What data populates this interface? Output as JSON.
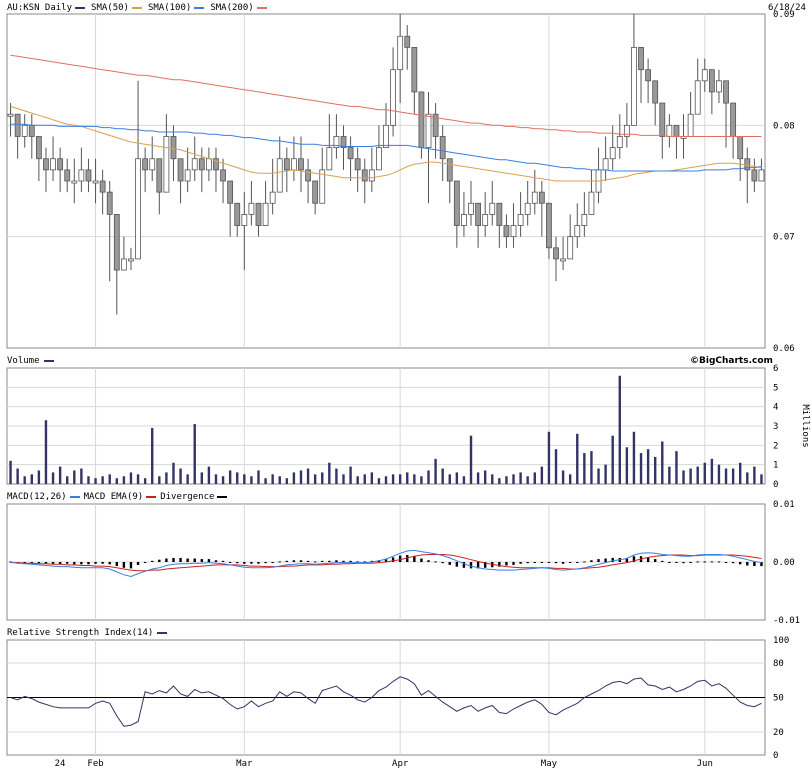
{
  "header": {
    "symbol_label": "AU:KSN Daily",
    "date": "6/18/24",
    "legend": [
      {
        "label": "SMA(50)",
        "color": "#d9a050"
      },
      {
        "label": "SMA(100)",
        "color": "#3a7fe0"
      },
      {
        "label": "SMA(200)",
        "color": "#e07060"
      }
    ],
    "symbol_color": "#333366"
  },
  "branding": "©BigCharts.com",
  "chart_data": [
    {
      "type": "candlestick",
      "title": "AU:KSN Daily",
      "ylim": [
        0.06,
        0.09
      ],
      "y_ticks": [
        "0.09",
        "0.08",
        "0.07",
        "0.06"
      ],
      "x_ticks": [
        "24",
        "Feb",
        "Mar",
        "Apr",
        "May",
        "Jun"
      ],
      "grid": true,
      "candle_color": "#999999",
      "close": [
        0.081,
        0.079,
        0.08,
        0.079,
        0.077,
        0.076,
        0.077,
        0.076,
        0.075,
        0.075,
        0.076,
        0.075,
        0.075,
        0.074,
        0.072,
        0.067,
        0.068,
        0.068,
        0.077,
        0.076,
        0.077,
        0.074,
        0.079,
        0.077,
        0.075,
        0.076,
        0.077,
        0.076,
        0.077,
        0.076,
        0.075,
        0.073,
        0.071,
        0.072,
        0.073,
        0.071,
        0.073,
        0.074,
        0.077,
        0.076,
        0.077,
        0.076,
        0.075,
        0.073,
        0.076,
        0.078,
        0.079,
        0.078,
        0.077,
        0.076,
        0.075,
        0.076,
        0.078,
        0.08,
        0.085,
        0.088,
        0.087,
        0.083,
        0.078,
        0.081,
        0.079,
        0.077,
        0.075,
        0.071,
        0.072,
        0.073,
        0.071,
        0.072,
        0.073,
        0.071,
        0.07,
        0.071,
        0.072,
        0.073,
        0.074,
        0.073,
        0.069,
        0.068,
        0.068,
        0.07,
        0.071,
        0.072,
        0.074,
        0.076,
        0.077,
        0.078,
        0.079,
        0.08,
        0.087,
        0.085,
        0.084,
        0.082,
        0.079,
        0.08,
        0.079,
        0.079,
        0.081,
        0.084,
        0.085,
        0.083,
        0.084,
        0.082,
        0.079,
        0.077,
        0.076,
        0.075,
        0.076
      ],
      "high": [
        0.082,
        0.08,
        0.081,
        0.081,
        0.078,
        0.078,
        0.079,
        0.078,
        0.077,
        0.077,
        0.078,
        0.077,
        0.077,
        0.076,
        0.075,
        0.072,
        0.07,
        0.069,
        0.084,
        0.078,
        0.079,
        0.077,
        0.081,
        0.08,
        0.077,
        0.078,
        0.079,
        0.078,
        0.078,
        0.078,
        0.077,
        0.075,
        0.073,
        0.074,
        0.075,
        0.073,
        0.075,
        0.077,
        0.079,
        0.078,
        0.079,
        0.079,
        0.077,
        0.075,
        0.078,
        0.081,
        0.081,
        0.08,
        0.079,
        0.078,
        0.077,
        0.078,
        0.08,
        0.082,
        0.087,
        0.09,
        0.089,
        0.086,
        0.08,
        0.083,
        0.082,
        0.08,
        0.077,
        0.073,
        0.074,
        0.075,
        0.073,
        0.074,
        0.075,
        0.073,
        0.072,
        0.073,
        0.074,
        0.075,
        0.076,
        0.075,
        0.071,
        0.07,
        0.07,
        0.072,
        0.073,
        0.074,
        0.076,
        0.078,
        0.079,
        0.08,
        0.081,
        0.082,
        0.09,
        0.086,
        0.086,
        0.084,
        0.081,
        0.081,
        0.08,
        0.081,
        0.083,
        0.086,
        0.086,
        0.085,
        0.085,
        0.084,
        0.081,
        0.079,
        0.078,
        0.077,
        0.077
      ],
      "low": [
        0.079,
        0.077,
        0.078,
        0.077,
        0.075,
        0.074,
        0.075,
        0.074,
        0.074,
        0.073,
        0.074,
        0.074,
        0.073,
        0.072,
        0.066,
        0.063,
        0.067,
        0.067,
        0.068,
        0.074,
        0.075,
        0.072,
        0.076,
        0.075,
        0.073,
        0.074,
        0.075,
        0.074,
        0.075,
        0.074,
        0.073,
        0.07,
        0.07,
        0.067,
        0.071,
        0.07,
        0.071,
        0.072,
        0.075,
        0.074,
        0.075,
        0.074,
        0.073,
        0.072,
        0.074,
        0.076,
        0.077,
        0.076,
        0.075,
        0.074,
        0.073,
        0.074,
        0.076,
        0.078,
        0.079,
        0.082,
        0.085,
        0.081,
        0.077,
        0.073,
        0.077,
        0.075,
        0.073,
        0.069,
        0.07,
        0.071,
        0.069,
        0.07,
        0.071,
        0.069,
        0.069,
        0.069,
        0.07,
        0.071,
        0.072,
        0.07,
        0.068,
        0.066,
        0.067,
        0.068,
        0.069,
        0.07,
        0.072,
        0.073,
        0.075,
        0.076,
        0.077,
        0.078,
        0.08,
        0.082,
        0.082,
        0.08,
        0.077,
        0.078,
        0.077,
        0.077,
        0.079,
        0.081,
        0.083,
        0.081,
        0.082,
        0.078,
        0.077,
        0.075,
        0.073,
        0.074,
        0.075
      ],
      "sma50": [
        0.0817,
        0.0815,
        0.0813,
        0.0811,
        0.0809,
        0.0807,
        0.0805,
        0.0803,
        0.0801,
        0.08,
        0.0799,
        0.0797,
        0.0795,
        0.0793,
        0.0791,
        0.0789,
        0.0787,
        0.0785,
        0.0784,
        0.0783,
        0.0782,
        0.0781,
        0.078,
        0.0779,
        0.0778,
        0.0776,
        0.0774,
        0.0772,
        0.077,
        0.0768,
        0.0766,
        0.0764,
        0.0762,
        0.076,
        0.0758,
        0.0757,
        0.0757,
        0.0757,
        0.0758,
        0.0759,
        0.076,
        0.0759,
        0.0758,
        0.0757,
        0.0756,
        0.0755,
        0.0754,
        0.0753,
        0.0753,
        0.0753,
        0.0753,
        0.0753,
        0.0754,
        0.0755,
        0.0757,
        0.076,
        0.0763,
        0.0765,
        0.0766,
        0.0767,
        0.0767,
        0.0766,
        0.0765,
        0.0764,
        0.0763,
        0.0762,
        0.0761,
        0.076,
        0.0759,
        0.0758,
        0.0757,
        0.0756,
        0.0755,
        0.0754,
        0.0753,
        0.0752,
        0.0751,
        0.075,
        0.075,
        0.075,
        0.075,
        0.075,
        0.075,
        0.075,
        0.0751,
        0.0752,
        0.0753,
        0.0754,
        0.0756,
        0.0757,
        0.0758,
        0.0759,
        0.0759,
        0.0759,
        0.076,
        0.0761,
        0.0762,
        0.0763,
        0.0764,
        0.0765,
        0.0766,
        0.0766,
        0.0766,
        0.0765,
        0.0764,
        0.0763,
        0.0762
      ],
      "sma100": [
        0.0801,
        0.0801,
        0.0801,
        0.08,
        0.08,
        0.08,
        0.08,
        0.0799,
        0.0799,
        0.0799,
        0.0799,
        0.0799,
        0.0799,
        0.0798,
        0.0798,
        0.0797,
        0.0797,
        0.0796,
        0.0796,
        0.0795,
        0.0795,
        0.0794,
        0.0794,
        0.0794,
        0.0794,
        0.0794,
        0.0793,
        0.0793,
        0.0792,
        0.0792,
        0.0791,
        0.0791,
        0.079,
        0.0789,
        0.0789,
        0.0788,
        0.0787,
        0.0786,
        0.0786,
        0.0785,
        0.0784,
        0.0783,
        0.0783,
        0.0783,
        0.0782,
        0.0782,
        0.0782,
        0.0781,
        0.0781,
        0.0781,
        0.0781,
        0.0781,
        0.0782,
        0.0782,
        0.0782,
        0.0782,
        0.0782,
        0.0781,
        0.078,
        0.0779,
        0.0778,
        0.0777,
        0.0776,
        0.0775,
        0.0774,
        0.0773,
        0.0772,
        0.0771,
        0.077,
        0.0769,
        0.0769,
        0.0768,
        0.0767,
        0.0766,
        0.0766,
        0.0765,
        0.0764,
        0.0763,
        0.0762,
        0.0762,
        0.0761,
        0.0761,
        0.076,
        0.076,
        0.076,
        0.0759,
        0.0759,
        0.0759,
        0.0759,
        0.0759,
        0.0759,
        0.0759,
        0.0759,
        0.0759,
        0.0759,
        0.0759,
        0.0759,
        0.0759,
        0.076,
        0.076,
        0.076,
        0.076,
        0.0761,
        0.0761,
        0.0762,
        0.0762,
        0.0763
      ],
      "sma200": [
        0.0863,
        0.0862,
        0.0861,
        0.086,
        0.0859,
        0.0858,
        0.0857,
        0.0856,
        0.0855,
        0.0854,
        0.0853,
        0.0852,
        0.0851,
        0.085,
        0.0849,
        0.0848,
        0.0847,
        0.0846,
        0.0845,
        0.0845,
        0.0844,
        0.0843,
        0.0842,
        0.0841,
        0.0841,
        0.084,
        0.0839,
        0.0838,
        0.0837,
        0.0836,
        0.0835,
        0.0834,
        0.0833,
        0.0832,
        0.0831,
        0.083,
        0.0829,
        0.0828,
        0.0827,
        0.0826,
        0.0825,
        0.0824,
        0.0823,
        0.0822,
        0.0821,
        0.082,
        0.0819,
        0.0818,
        0.0817,
        0.0817,
        0.0816,
        0.0815,
        0.0814,
        0.0814,
        0.0813,
        0.0812,
        0.0811,
        0.081,
        0.0809,
        0.0808,
        0.0807,
        0.0806,
        0.0805,
        0.0804,
        0.0803,
        0.0802,
        0.0802,
        0.0801,
        0.08,
        0.08,
        0.0799,
        0.0799,
        0.0798,
        0.0798,
        0.0797,
        0.0797,
        0.0796,
        0.0796,
        0.0795,
        0.0795,
        0.0794,
        0.0794,
        0.0794,
        0.0793,
        0.0793,
        0.0793,
        0.0792,
        0.0792,
        0.0792,
        0.0791,
        0.0791,
        0.0791,
        0.0791,
        0.079,
        0.079,
        0.079,
        0.079,
        0.079,
        0.079,
        0.079,
        0.079,
        0.079,
        0.079,
        0.079,
        0.079,
        0.079,
        0.079
      ]
    },
    {
      "type": "bar",
      "title": "Volume",
      "ylabel": "Millions",
      "ylim": [
        0,
        6
      ],
      "y_ticks": [
        "6",
        "5",
        "4",
        "3",
        "2",
        "1",
        "0"
      ],
      "color": "#333366",
      "values": [
        1.2,
        0.8,
        0.4,
        0.5,
        0.7,
        3.3,
        0.6,
        0.9,
        0.4,
        0.7,
        0.8,
        0.4,
        0.3,
        0.4,
        0.5,
        0.3,
        0.4,
        0.6,
        0.5,
        0.3,
        2.9,
        0.4,
        0.6,
        1.1,
        0.8,
        0.5,
        3.1,
        0.6,
        0.9,
        0.5,
        0.4,
        0.7,
        0.6,
        0.5,
        0.4,
        0.7,
        0.3,
        0.5,
        0.4,
        0.3,
        0.6,
        0.7,
        0.8,
        0.5,
        0.6,
        1.1,
        0.8,
        0.5,
        0.9,
        0.4,
        0.5,
        0.6,
        0.3,
        0.4,
        0.5,
        0.5,
        0.6,
        0.5,
        0.4,
        0.7,
        1.3,
        0.8,
        0.5,
        0.6,
        0.4,
        2.5,
        0.6,
        0.7,
        0.5,
        0.3,
        0.4,
        0.5,
        0.6,
        0.4,
        0.6,
        0.9,
        2.7,
        1.8,
        0.7,
        0.5,
        2.6,
        1.6,
        1.7,
        0.8,
        1.0,
        2.5,
        5.6,
        1.9,
        2.7,
        1.6,
        1.8,
        1.4,
        2.2,
        0.9,
        1.7,
        0.7,
        0.8,
        0.9,
        1.1,
        1.3,
        1.0,
        0.8,
        0.8,
        1.1,
        0.6,
        0.9,
        0.5
      ]
    },
    {
      "type": "line",
      "title": "MACD(12,26)",
      "legend": [
        "MACD(12,26)",
        "MACD EMA(9)",
        "Divergence"
      ],
      "colors": {
        "macd": "#3a7fe0",
        "ema": "#cc2222",
        "divergence": "#000000"
      },
      "ylim": [
        -0.01,
        0.01
      ],
      "y_ticks": [
        "0.01",
        "0.00",
        "-0.01"
      ],
      "macd": [
        0.0,
        -0.0002,
        -0.0003,
        -0.0004,
        -0.0005,
        -0.0006,
        -0.0007,
        -0.0008,
        -0.0008,
        -0.0009,
        -0.001,
        -0.001,
        -0.001,
        -0.001,
        -0.0012,
        -0.0017,
        -0.0022,
        -0.0025,
        -0.002,
        -0.0016,
        -0.0012,
        -0.001,
        -0.0006,
        -0.0004,
        -0.0003,
        -0.0003,
        -0.0002,
        -0.0002,
        -0.0001,
        -0.0002,
        -0.0003,
        -0.0005,
        -0.0007,
        -0.0009,
        -0.001,
        -0.001,
        -0.001,
        -0.0009,
        -0.0007,
        -0.0005,
        -0.0004,
        -0.0003,
        -0.0003,
        -0.0004,
        -0.0003,
        -0.0002,
        -0.0001,
        -0.0001,
        -0.0001,
        -0.0001,
        -0.0001,
        0.0,
        0.0002,
        0.0005,
        0.001,
        0.0015,
        0.0019,
        0.002,
        0.0018,
        0.0016,
        0.0014,
        0.0011,
        0.0007,
        0.0002,
        -0.0003,
        -0.0007,
        -0.001,
        -0.0012,
        -0.0013,
        -0.0014,
        -0.0014,
        -0.0014,
        -0.0013,
        -0.0012,
        -0.0011,
        -0.001,
        -0.0011,
        -0.0013,
        -0.0014,
        -0.0013,
        -0.0012,
        -0.001,
        -0.0007,
        -0.0004,
        -0.0001,
        0.0002,
        0.0004,
        0.0006,
        0.0012,
        0.0015,
        0.0016,
        0.0015,
        0.0013,
        0.0012,
        0.0011,
        0.001,
        0.001,
        0.0012,
        0.0013,
        0.0013,
        0.0013,
        0.0012,
        0.001,
        0.0007,
        0.0004,
        0.0001,
        -0.0001
      ],
      "ema": [
        -0.0001,
        -0.0001,
        -0.0002,
        -0.0002,
        -0.0003,
        -0.0003,
        -0.0004,
        -0.0004,
        -0.0005,
        -0.0005,
        -0.0006,
        -0.0006,
        -0.0007,
        -0.0007,
        -0.0008,
        -0.001,
        -0.0012,
        -0.0014,
        -0.0015,
        -0.0015,
        -0.0014,
        -0.0014,
        -0.0012,
        -0.0011,
        -0.001,
        -0.0009,
        -0.0008,
        -0.0007,
        -0.0006,
        -0.0005,
        -0.0005,
        -0.0005,
        -0.0005,
        -0.0006,
        -0.0007,
        -0.0007,
        -0.0008,
        -0.0008,
        -0.0008,
        -0.0007,
        -0.0007,
        -0.0006,
        -0.0005,
        -0.0005,
        -0.0005,
        -0.0004,
        -0.0004,
        -0.0003,
        -0.0003,
        -0.0002,
        -0.0002,
        -0.0002,
        -0.0001,
        0.0,
        0.0002,
        0.0004,
        0.0007,
        0.001,
        0.0012,
        0.0013,
        0.0013,
        0.0013,
        0.0012,
        0.001,
        0.0007,
        0.0004,
        0.0001,
        -0.0002,
        -0.0004,
        -0.0006,
        -0.0008,
        -0.0009,
        -0.001,
        -0.001,
        -0.001,
        -0.001,
        -0.001,
        -0.0011,
        -0.0011,
        -0.0012,
        -0.0012,
        -0.0011,
        -0.001,
        -0.0009,
        -0.0007,
        -0.0005,
        -0.0003,
        -0.0001,
        0.0002,
        0.0005,
        0.0008,
        0.001,
        0.0011,
        0.0012,
        0.0012,
        0.0012,
        0.0011,
        0.0011,
        0.0012,
        0.0012,
        0.0012,
        0.0012,
        0.0012,
        0.0011,
        0.001,
        0.0008,
        0.0006
      ]
    },
    {
      "type": "line",
      "title": "Relative Strength Index(14)",
      "color": "#333366",
      "ylim": [
        0,
        100
      ],
      "y_ticks": [
        "100",
        "80",
        "50",
        "20",
        "0"
      ],
      "reference_line": 50,
      "values": [
        50,
        48,
        51,
        49,
        46,
        44,
        42,
        41,
        41,
        41,
        41,
        41,
        45,
        47,
        45,
        34,
        25,
        26,
        29,
        55,
        53,
        56,
        54,
        60,
        53,
        51,
        57,
        54,
        55,
        52,
        49,
        44,
        40,
        42,
        47,
        42,
        45,
        47,
        55,
        51,
        55,
        54,
        49,
        45,
        56,
        58,
        60,
        55,
        52,
        48,
        46,
        50,
        56,
        59,
        64,
        68,
        66,
        62,
        52,
        56,
        51,
        46,
        42,
        38,
        41,
        43,
        38,
        41,
        43,
        37,
        36,
        40,
        43,
        46,
        48,
        44,
        37,
        35,
        39,
        42,
        45,
        50,
        53,
        56,
        60,
        63,
        64,
        62,
        66,
        67,
        61,
        60,
        57,
        59,
        55,
        57,
        60,
        64,
        65,
        60,
        62,
        58,
        52,
        46,
        43,
        42,
        45
      ]
    }
  ]
}
